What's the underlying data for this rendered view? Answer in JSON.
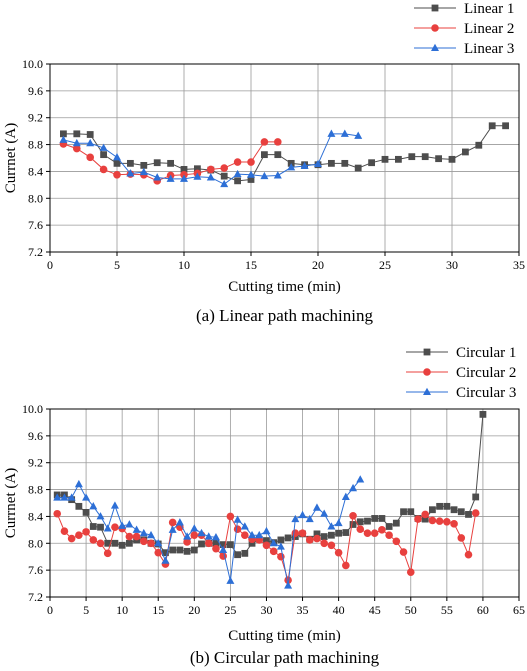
{
  "charts": [
    {
      "type": "line",
      "caption": "(a) Linear path machining",
      "xlabel": "Cutting time (min)",
      "ylabel": "Currnet (A)",
      "xlim": [
        0,
        35
      ],
      "ylim": [
        7.2,
        10.0
      ],
      "xticks": [
        "0",
        "5",
        "10",
        "15",
        "20",
        "25",
        "30",
        "35"
      ],
      "yticks": [
        "7.2",
        "7.6",
        "8.0",
        "8.4",
        "8.8",
        "9.2",
        "9.6",
        "10.0"
      ],
      "grid": true,
      "legend_position": "top-right-outside",
      "series": [
        {
          "name": "Linear 1",
          "color": "#4d4d4d",
          "marker": "square",
          "x": [
            1,
            2,
            3,
            4,
            5,
            6,
            7,
            8,
            9,
            10,
            11,
            12,
            13,
            14,
            15,
            16,
            17,
            18,
            19,
            20,
            21,
            22,
            23,
            24,
            25,
            26,
            27,
            28,
            29,
            30,
            31,
            32,
            33,
            34
          ],
          "y": [
            8.96,
            8.96,
            8.95,
            8.65,
            8.52,
            8.52,
            8.49,
            8.53,
            8.52,
            8.43,
            8.44,
            8.42,
            8.33,
            8.26,
            8.28,
            8.65,
            8.65,
            8.52,
            8.5,
            8.5,
            8.52,
            8.52,
            8.45,
            8.53,
            8.58,
            8.58,
            8.62,
            8.62,
            8.59,
            8.58,
            8.69,
            8.79,
            9.08,
            9.08
          ]
        },
        {
          "name": "Linear 2",
          "color": "#e8403e",
          "marker": "circle",
          "x": [
            1,
            2,
            3,
            4,
            5,
            6,
            7,
            8,
            9,
            10,
            11,
            12,
            13,
            14,
            15,
            16,
            17
          ],
          "y": [
            8.81,
            8.74,
            8.61,
            8.43,
            8.35,
            8.36,
            8.35,
            8.26,
            8.34,
            8.35,
            8.37,
            8.43,
            8.45,
            8.54,
            8.54,
            8.84,
            8.84
          ]
        },
        {
          "name": "Linear 3",
          "color": "#2d6fd6",
          "marker": "triangle",
          "x": [
            1,
            2,
            3,
            4,
            5,
            6,
            7,
            8,
            9,
            10,
            11,
            12,
            13,
            14,
            15,
            16,
            17,
            18,
            19,
            20,
            21,
            22,
            23
          ],
          "y": [
            8.87,
            8.82,
            8.82,
            8.75,
            8.61,
            8.37,
            8.39,
            8.31,
            8.29,
            8.29,
            8.32,
            8.31,
            8.21,
            8.36,
            8.35,
            8.33,
            8.34,
            8.46,
            8.48,
            8.51,
            8.96,
            8.96,
            8.93
          ]
        }
      ]
    },
    {
      "type": "line",
      "caption": "(b) Circular path machining",
      "xlabel": "Cutting time (min)",
      "ylabel": "Currnet (A)",
      "xlim": [
        0,
        65
      ],
      "ylim": [
        7.2,
        10.0
      ],
      "xticks": [
        "0",
        "5",
        "10",
        "15",
        "20",
        "25",
        "30",
        "35",
        "40",
        "45",
        "50",
        "55",
        "60",
        "65"
      ],
      "yticks": [
        "7.2",
        "7.6",
        "8.0",
        "8.4",
        "8.8",
        "9.2",
        "9.6",
        "10.0"
      ],
      "grid": true,
      "legend_position": "top-right-outside",
      "series": [
        {
          "name": "Circular 1",
          "color": "#4d4d4d",
          "marker": "square",
          "x": [
            1,
            2,
            3,
            4,
            5,
            6,
            7,
            8,
            9,
            10,
            11,
            12,
            13,
            14,
            15,
            16,
            17,
            18,
            19,
            20,
            21,
            22,
            23,
            24,
            25,
            26,
            27,
            28,
            29,
            30,
            31,
            32,
            33,
            34,
            35,
            36,
            37,
            38,
            39,
            40,
            41,
            42,
            43,
            44,
            45,
            46,
            47,
            48,
            49,
            50,
            51,
            52,
            53,
            54,
            55,
            56,
            57,
            58,
            59,
            60
          ],
          "y": [
            8.72,
            8.72,
            8.65,
            8.55,
            8.46,
            8.25,
            8.24,
            8.0,
            8.0,
            7.97,
            8.0,
            8.05,
            8.05,
            8.0,
            7.99,
            7.86,
            7.9,
            7.9,
            7.88,
            7.9,
            7.99,
            8.0,
            8.0,
            7.98,
            7.98,
            7.83,
            7.85,
            8.0,
            8.06,
            8.04,
            8.01,
            8.05,
            8.08,
            8.1,
            8.14,
            8.06,
            8.14,
            8.1,
            8.12,
            8.15,
            8.16,
            8.28,
            8.32,
            8.33,
            8.37,
            8.37,
            8.25,
            8.3,
            8.47,
            8.47,
            8.37,
            8.36,
            8.5,
            8.55,
            8.55,
            8.5,
            8.47,
            8.43,
            8.69,
            9.92
          ]
        },
        {
          "name": "Circular 2",
          "color": "#e8403e",
          "marker": "circle",
          "x": [
            1,
            2,
            3,
            4,
            5,
            6,
            7,
            8,
            9,
            10,
            11,
            12,
            13,
            14,
            15,
            16,
            17,
            18,
            19,
            20,
            21,
            22,
            23,
            24,
            25,
            26,
            27,
            28,
            29,
            30,
            31,
            32,
            33,
            34,
            35,
            36,
            37,
            38,
            39,
            40,
            41,
            42,
            43,
            44,
            45,
            46,
            47,
            48,
            49,
            50,
            51,
            52,
            53,
            54,
            55,
            56,
            57,
            58,
            59
          ],
          "y": [
            8.44,
            8.18,
            8.07,
            8.12,
            8.17,
            8.05,
            8.0,
            7.85,
            8.24,
            8.22,
            8.1,
            8.1,
            8.03,
            8.0,
            7.86,
            7.69,
            8.31,
            8.24,
            8.02,
            8.12,
            8.12,
            8.0,
            7.92,
            7.81,
            8.4,
            8.21,
            8.12,
            8.06,
            8.05,
            7.97,
            7.88,
            7.8,
            7.45,
            8.15,
            8.15,
            8.05,
            8.07,
            8.0,
            7.97,
            7.86,
            7.67,
            8.41,
            8.21,
            8.15,
            8.15,
            8.2,
            8.12,
            8.03,
            7.87,
            7.57,
            8.36,
            8.43,
            8.34,
            8.33,
            8.32,
            8.29,
            8.08,
            7.83,
            8.45
          ]
        },
        {
          "name": "Circular 3",
          "color": "#2d6fd6",
          "marker": "triangle",
          "x": [
            1,
            2,
            3,
            4,
            5,
            6,
            7,
            8,
            9,
            10,
            11,
            12,
            13,
            14,
            15,
            16,
            17,
            18,
            19,
            20,
            21,
            22,
            23,
            24,
            25,
            26,
            27,
            28,
            29,
            30,
            31,
            32,
            33,
            34,
            35,
            36,
            37,
            38,
            39,
            40,
            41,
            42,
            43
          ],
          "y": [
            8.68,
            8.68,
            8.68,
            8.88,
            8.68,
            8.55,
            8.4,
            8.22,
            8.56,
            8.26,
            8.28,
            8.2,
            8.15,
            8.12,
            8.0,
            7.74,
            8.2,
            8.31,
            8.1,
            8.22,
            8.15,
            8.1,
            8.09,
            7.9,
            7.44,
            8.35,
            8.25,
            8.12,
            8.12,
            8.18,
            8.0,
            7.95,
            7.37,
            8.36,
            8.42,
            8.36,
            8.53,
            8.44,
            8.25,
            8.3,
            8.69,
            8.82,
            8.95
          ]
        }
      ]
    }
  ]
}
